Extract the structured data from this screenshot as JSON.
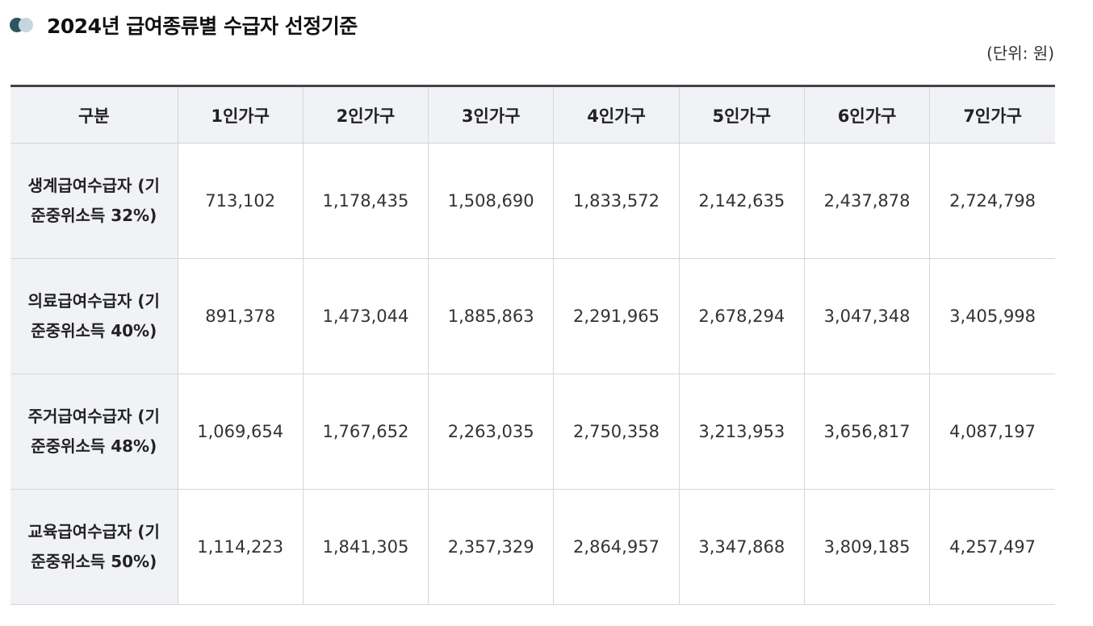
{
  "title": "2024년 급여종류별 수급자 선정기준",
  "unit_note": "(단위: 원)",
  "table": {
    "headers": [
      "구분",
      "1인가구",
      "2인가구",
      "3인가구",
      "4인가구",
      "5인가구",
      "6인가구",
      "7인가구"
    ],
    "rows": [
      {
        "label": "생계급여수급자 (기준중위소득 32%)",
        "values": [
          "713,102",
          "1,178,435",
          "1,508,690",
          "1,833,572",
          "2,142,635",
          "2,437,878",
          "2,724,798"
        ]
      },
      {
        "label": "의료급여수급자 (기준중위소득 40%)",
        "values": [
          "891,378",
          "1,473,044",
          "1,885,863",
          "2,291,965",
          "2,678,294",
          "3,047,348",
          "3,405,998"
        ]
      },
      {
        "label": "주거급여수급자 (기준중위소득 48%)",
        "values": [
          "1,069,654",
          "1,767,652",
          "2,263,035",
          "2,750,358",
          "3,213,953",
          "3,656,817",
          "4,087,197"
        ]
      },
      {
        "label": "교육급여수급자 (기준중위소득 50%)",
        "values": [
          "1,114,223",
          "1,841,305",
          "2,357,329",
          "2,864,957",
          "3,347,868",
          "3,809,185",
          "4,257,497"
        ]
      }
    ]
  }
}
